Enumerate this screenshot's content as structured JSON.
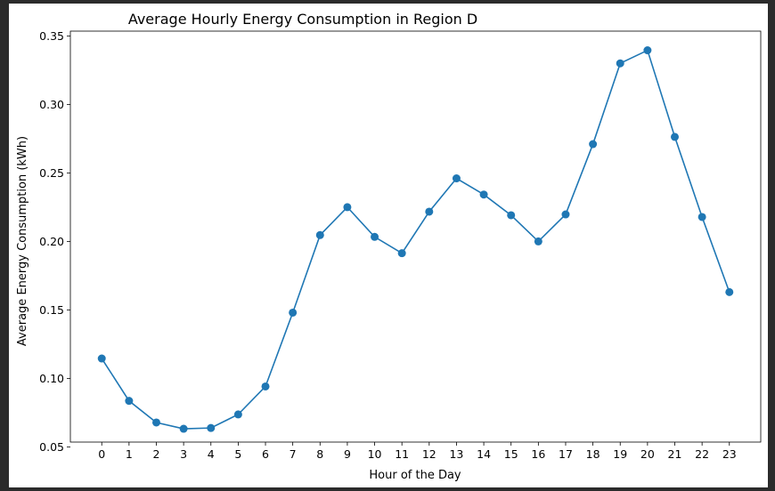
{
  "chart_data": {
    "type": "line",
    "title": "Average Hourly Energy Consumption in Region D",
    "xlabel": "Hour of the Day",
    "ylabel": "Average Energy Consumption (kWh)",
    "x": [
      0,
      1,
      2,
      3,
      4,
      5,
      6,
      7,
      8,
      9,
      10,
      11,
      12,
      13,
      14,
      15,
      16,
      17,
      18,
      19,
      20,
      21,
      22,
      23
    ],
    "values": [
      0.1145,
      0.0836,
      0.0678,
      0.0632,
      0.0638,
      0.0737,
      0.0941,
      0.148,
      0.2046,
      0.225,
      0.2033,
      0.1914,
      0.2217,
      0.246,
      0.2342,
      0.2191,
      0.2,
      0.2197,
      0.271,
      0.33,
      0.3395,
      0.2763,
      0.2178,
      0.163
    ],
    "yticks": [
      "0.05",
      "0.10",
      "0.15",
      "0.20",
      "0.25",
      "0.30",
      "0.35"
    ],
    "xticks": [
      "0",
      "1",
      "2",
      "3",
      "4",
      "5",
      "6",
      "7",
      "8",
      "9",
      "10",
      "11",
      "12",
      "13",
      "14",
      "15",
      "16",
      "17",
      "18",
      "19",
      "20",
      "21",
      "22",
      "23"
    ],
    "xlim": [
      -1.15,
      24.15
    ],
    "ylim": [
      0.0535,
      0.3535
    ],
    "grid": false,
    "marker": "circle",
    "color": "#1f77b4"
  }
}
